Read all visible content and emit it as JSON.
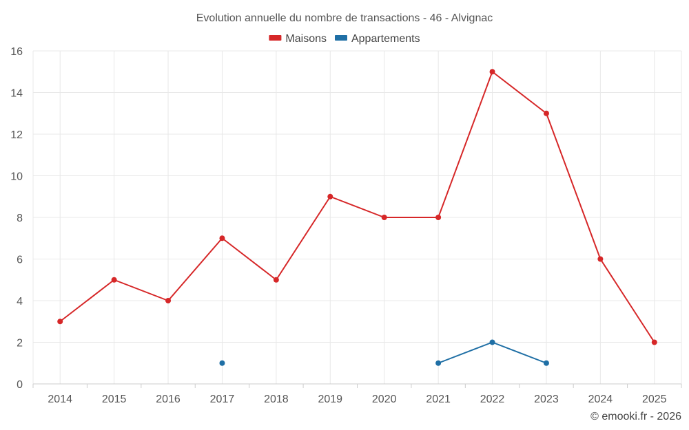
{
  "chart_data": {
    "type": "line",
    "title": "Evolution annuelle du nombre de transactions - 46 - Alvignac",
    "xlabel": "",
    "ylabel": "",
    "categories": [
      "2014",
      "2015",
      "2016",
      "2017",
      "2018",
      "2019",
      "2020",
      "2021",
      "2022",
      "2023",
      "2024",
      "2025"
    ],
    "ylim": [
      0,
      16
    ],
    "yticks": [
      0,
      2,
      4,
      6,
      8,
      10,
      12,
      14,
      16
    ],
    "grid": true,
    "legend_position": "top-center",
    "series": [
      {
        "name": "Maisons",
        "color": "#d62728",
        "values": [
          3,
          5,
          4,
          7,
          5,
          9,
          8,
          8,
          15,
          13,
          6,
          2
        ]
      },
      {
        "name": "Appartements",
        "color": "#1f6fa5",
        "values": [
          null,
          null,
          null,
          1,
          null,
          null,
          null,
          1,
          2,
          1,
          null,
          null
        ]
      }
    ]
  },
  "credit": "© emooki.fr - 2026"
}
